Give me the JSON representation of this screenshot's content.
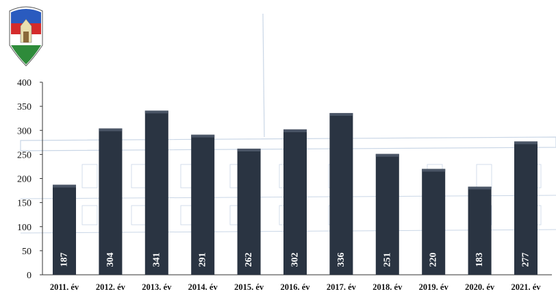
{
  "colors": {
    "bar": "#2a3442",
    "bar_highlight": "#4a5566",
    "bar_label": "#ffffff",
    "axis": "#333333",
    "background_sketch": "#c9d6e6",
    "logo_red": "#d42b2b",
    "logo_green": "#2e8b3a",
    "logo_blue": "#2a5bbf"
  },
  "chart_data": {
    "type": "bar",
    "title": "",
    "categories": [
      "2011. év",
      "2012. év",
      "2013. év",
      "2014. év",
      "2015. év",
      "2016. év",
      "2017. év",
      "2018. év",
      "2019. év",
      "2020. év",
      "2021. év"
    ],
    "values": [
      187,
      304,
      341,
      291,
      262,
      302,
      336,
      251,
      220,
      183,
      277
    ],
    "ylim": [
      0,
      400
    ],
    "yticks": [
      0,
      50,
      100,
      150,
      200,
      250,
      300,
      350,
      400
    ],
    "xlabel": "",
    "ylabel": "",
    "grid": false,
    "legend": "none",
    "data_labels": "rotated inside bar base"
  }
}
